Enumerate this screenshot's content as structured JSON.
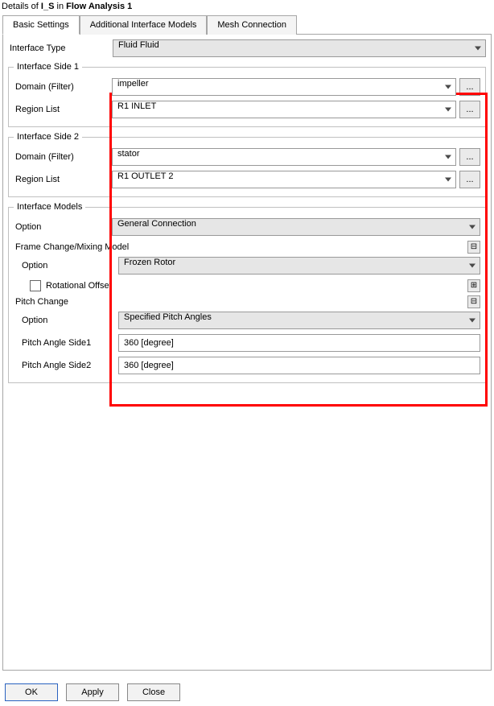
{
  "colors": {
    "highlight_box": "#ff0000",
    "tab_border": "#a6a6a6",
    "ctrl_border": "#999999",
    "grey_select_bg": "#e6e6e6",
    "button_bg": "#f2f2f2",
    "primary_border": "#2a62c0"
  },
  "title": {
    "prefix": "Details of ",
    "name": "I_S",
    "middle": " in ",
    "context": "Flow Analysis 1"
  },
  "tabs": [
    {
      "label": "Basic Settings",
      "active": true
    },
    {
      "label": "Additional Interface Models",
      "active": false
    },
    {
      "label": "Mesh Connection",
      "active": false
    }
  ],
  "interface_type": {
    "label": "Interface Type",
    "value": "Fluid Fluid"
  },
  "side1": {
    "legend": "Interface Side 1",
    "domain_label": "Domain (Filter)",
    "domain_value": "impeller",
    "region_label": "Region List",
    "region_value": "R1 INLET"
  },
  "side2": {
    "legend": "Interface Side 2",
    "domain_label": "Domain (Filter)",
    "domain_value": "stator",
    "region_label": "Region List",
    "region_value": "R1 OUTLET 2"
  },
  "models": {
    "legend": "Interface Models",
    "option_label": "Option",
    "option_value": "General Connection",
    "frame_change": {
      "title": "Frame Change/Mixing Model",
      "option_label": "Option",
      "option_value": "Frozen Rotor",
      "rot_offset_label": "Rotational Offset",
      "collapse_icon": "⊟",
      "expand_icon": "⊞"
    },
    "pitch_change": {
      "title": "Pitch Change",
      "option_label": "Option",
      "option_value": "Specified Pitch Angles",
      "angle1_label": "Pitch Angle Side1",
      "angle1_value": "360 [degree]",
      "angle2_label": "Pitch Angle Side2",
      "angle2_value": "360 [degree]",
      "collapse_icon": "⊟"
    }
  },
  "ellipsis": "...",
  "buttons": {
    "ok": "OK",
    "apply": "Apply",
    "close": "Close"
  }
}
